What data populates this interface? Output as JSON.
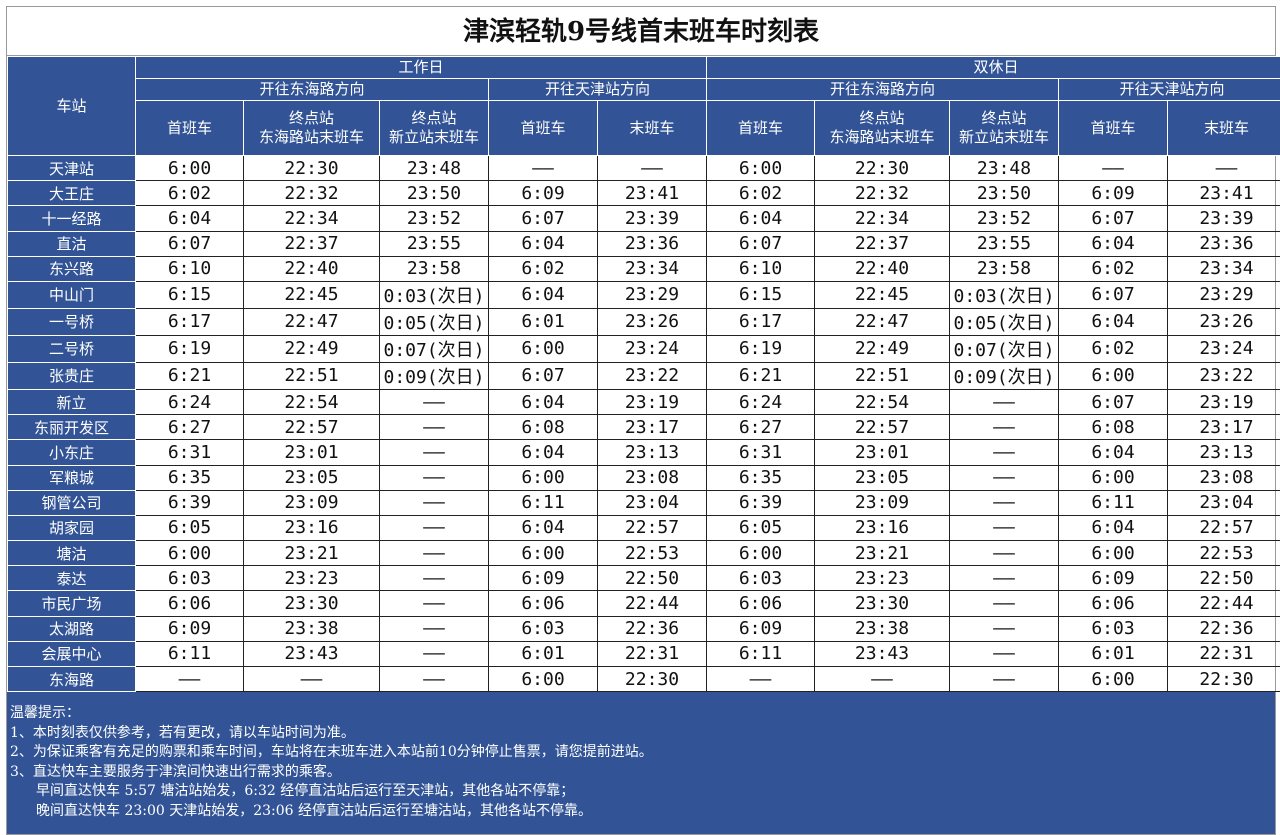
{
  "title": "津滨轻轨9号线首末班车时刻表",
  "header": {
    "station": "车站",
    "weekday": "工作日",
    "weekend": "双休日",
    "dir_donghai": "开往东海路方向",
    "dir_tianjin": "开往天津站方向",
    "first": "首班车",
    "last": "末班车",
    "term_a1": "终点站",
    "term_a2": "东海路站末班车",
    "term_b1": "终点站",
    "term_b2": "新立站末班车"
  },
  "rows": [
    [
      "天津站",
      "6:00",
      "22:30",
      "23:48",
      "——",
      "——",
      "6:00",
      "22:30",
      "23:48",
      "——",
      "——"
    ],
    [
      "大王庄",
      "6:02",
      "22:32",
      "23:50",
      "6:09",
      "23:41",
      "6:02",
      "22:32",
      "23:50",
      "6:09",
      "23:41"
    ],
    [
      "十一经路",
      "6:04",
      "22:34",
      "23:52",
      "6:07",
      "23:39",
      "6:04",
      "22:34",
      "23:52",
      "6:07",
      "23:39"
    ],
    [
      "直沽",
      "6:07",
      "22:37",
      "23:55",
      "6:04",
      "23:36",
      "6:07",
      "22:37",
      "23:55",
      "6:04",
      "23:36"
    ],
    [
      "东兴路",
      "6:10",
      "22:40",
      "23:58",
      "6:02",
      "23:34",
      "6:10",
      "22:40",
      "23:58",
      "6:02",
      "23:34"
    ],
    [
      "中山门",
      "6:15",
      "22:45",
      "0:03(次日)",
      "6:04",
      "23:29",
      "6:15",
      "22:45",
      "0:03(次日)",
      "6:07",
      "23:29"
    ],
    [
      "一号桥",
      "6:17",
      "22:47",
      "0:05(次日)",
      "6:01",
      "23:26",
      "6:17",
      "22:47",
      "0:05(次日)",
      "6:04",
      "23:26"
    ],
    [
      "二号桥",
      "6:19",
      "22:49",
      "0:07(次日)",
      "6:00",
      "23:24",
      "6:19",
      "22:49",
      "0:07(次日)",
      "6:02",
      "23:24"
    ],
    [
      "张贵庄",
      "6:21",
      "22:51",
      "0:09(次日)",
      "6:07",
      "23:22",
      "6:21",
      "22:51",
      "0:09(次日)",
      "6:00",
      "23:22"
    ],
    [
      "新立",
      "6:24",
      "22:54",
      "——",
      "6:04",
      "23:19",
      "6:24",
      "22:54",
      "——",
      "6:07",
      "23:19"
    ],
    [
      "东丽开发区",
      "6:27",
      "22:57",
      "——",
      "6:08",
      "23:17",
      "6:27",
      "22:57",
      "——",
      "6:08",
      "23:17"
    ],
    [
      "小东庄",
      "6:31",
      "23:01",
      "——",
      "6:04",
      "23:13",
      "6:31",
      "23:01",
      "——",
      "6:04",
      "23:13"
    ],
    [
      "军粮城",
      "6:35",
      "23:05",
      "——",
      "6:00",
      "23:08",
      "6:35",
      "23:05",
      "——",
      "6:00",
      "23:08"
    ],
    [
      "钢管公司",
      "6:39",
      "23:09",
      "——",
      "6:11",
      "23:04",
      "6:39",
      "23:09",
      "——",
      "6:11",
      "23:04"
    ],
    [
      "胡家园",
      "6:05",
      "23:16",
      "——",
      "6:04",
      "22:57",
      "6:05",
      "23:16",
      "——",
      "6:04",
      "22:57"
    ],
    [
      "塘沽",
      "6:00",
      "23:21",
      "——",
      "6:00",
      "22:53",
      "6:00",
      "23:21",
      "——",
      "6:00",
      "22:53"
    ],
    [
      "泰达",
      "6:03",
      "23:23",
      "——",
      "6:09",
      "22:50",
      "6:03",
      "23:23",
      "——",
      "6:09",
      "22:50"
    ],
    [
      "市民广场",
      "6:06",
      "23:30",
      "——",
      "6:06",
      "22:44",
      "6:06",
      "23:30",
      "——",
      "6:06",
      "22:44"
    ],
    [
      "太湖路",
      "6:09",
      "23:38",
      "——",
      "6:03",
      "22:36",
      "6:09",
      "23:38",
      "——",
      "6:03",
      "22:36"
    ],
    [
      "会展中心",
      "6:11",
      "23:43",
      "——",
      "6:01",
      "22:31",
      "6:11",
      "23:43",
      "——",
      "6:01",
      "22:31"
    ],
    [
      "东海路",
      "——",
      "——",
      "——",
      "6:00",
      "22:30",
      "——",
      "——",
      "——",
      "6:00",
      "22:30"
    ]
  ],
  "notes": {
    "heading": "温馨提示：",
    "items": [
      "1、本时刻表仅供参考，若有更改，请以车站时间为准。",
      "2、为保证乘客有充足的购票和乘车时间，车站将在末班车进入本站前10分钟停止售票，请您提前进站。",
      "3、直达快车主要服务于津滨间快速出行需求的乘客。"
    ],
    "sub": [
      "早间直达快车 5:57 塘沽站始发，6:32 经停直沽站后运行至天津站，其他各站不停靠；",
      "晚间直达快车 23:00 天津站始发，23:06 经停直沽站后运行至塘沽站，其他各站不停靠。"
    ]
  },
  "colors": {
    "header_bg": "#325496"
  }
}
